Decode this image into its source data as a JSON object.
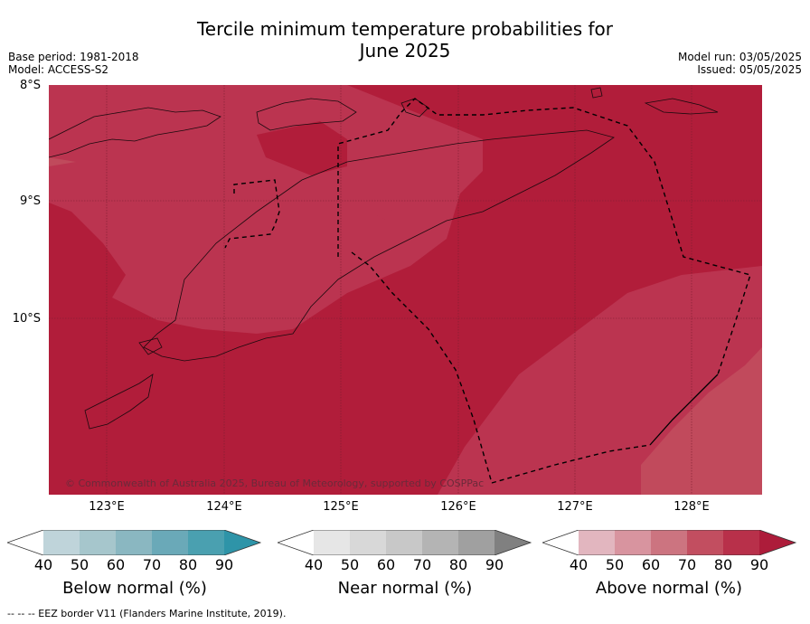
{
  "title_line1": "Tercile minimum temperature probabilities for",
  "title_line2": "June 2025",
  "base_period": "Base period: 1981-2018",
  "model": "Model: ACCESS-S2",
  "model_run": "Model run: 03/05/2025",
  "issued": "Issued: 05/05/2025",
  "lat_labels": [
    "8°S",
    "9°S",
    "10°S"
  ],
  "lon_labels": [
    "123°E",
    "124°E",
    "125°E",
    "126°E",
    "127°E",
    "128°E"
  ],
  "copyright": "© Commonwealth of Australia 2025, Bureau of Meteorology, supported by COSPPac",
  "footer": "--  --  -- EEZ border V11 (Flanders Marine Institute, 2019).",
  "colorbars": [
    {
      "title": "Below normal (%)",
      "ticks": [
        "40",
        "50",
        "60",
        "70",
        "80",
        "90"
      ],
      "colors": [
        "#ffffff",
        "#bfd4da",
        "#a6c6cc",
        "#8ab7c1",
        "#6aa9b8",
        "#4aa0b0",
        "#2e94a8"
      ]
    },
    {
      "title": "Near normal (%)",
      "ticks": [
        "40",
        "50",
        "60",
        "70",
        "80",
        "90"
      ],
      "colors": [
        "#ffffff",
        "#e6e6e6",
        "#d8d8d8",
        "#c8c8c8",
        "#b4b4b4",
        "#a0a0a0",
        "#808080"
      ]
    },
    {
      "title": "Above normal (%)",
      "ticks": [
        "40",
        "50",
        "60",
        "70",
        "80",
        "90"
      ],
      "colors": [
        "#ffffff",
        "#e2b6bf",
        "#d8949f",
        "#cc7480",
        "#c24e60",
        "#b8304a",
        "#ad1c3a"
      ]
    }
  ],
  "map_colors": {
    "high": "#b11d3a",
    "mid": "#bf3a4f",
    "low": "#c45060"
  }
}
